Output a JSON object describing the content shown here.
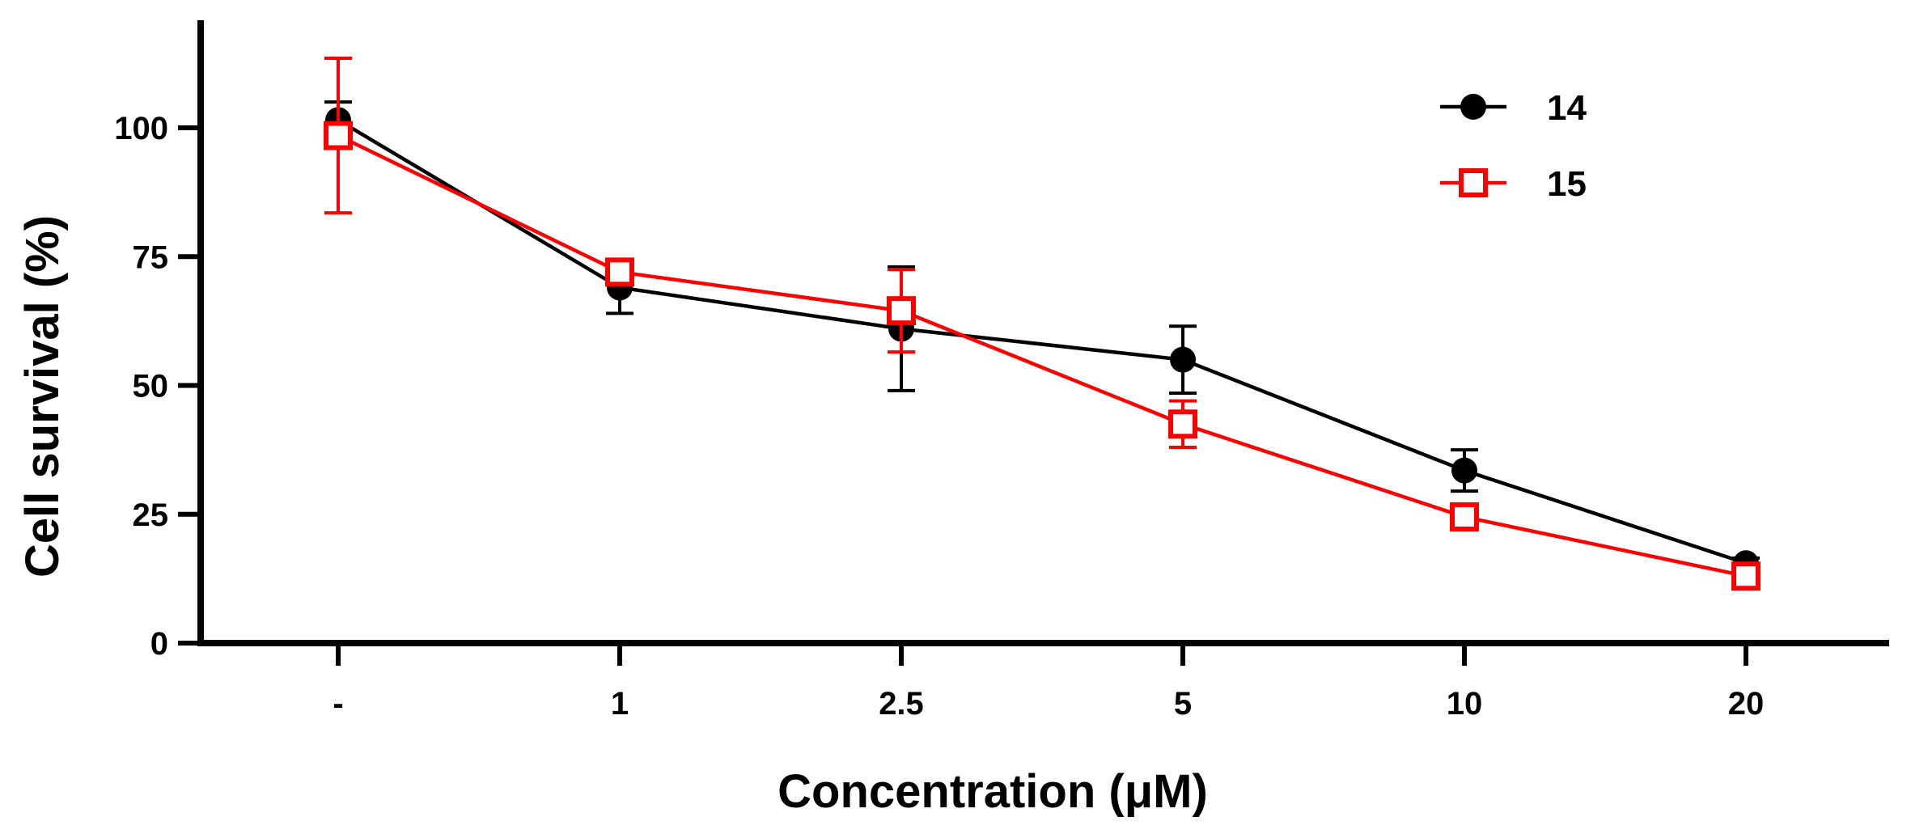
{
  "chart_data": {
    "type": "line",
    "title": "",
    "xlabel": "Concentration (μM)",
    "ylabel": "Cell survival (%)",
    "categories": [
      "-",
      "1",
      "2.5",
      "5",
      "10",
      "20"
    ],
    "ylim": [
      0,
      120
    ],
    "yticks": [
      0,
      25,
      50,
      75,
      100
    ],
    "ytick_labels": [
      "0",
      "25",
      "50",
      "75",
      "100"
    ],
    "grid": false,
    "legend_position": "top-right",
    "series": [
      {
        "name": "14",
        "color": "#000000",
        "marker": "filled-circle",
        "values": [
          101.5,
          69,
          61,
          55,
          33.5,
          15.5
        ],
        "errors": [
          3.5,
          5,
          12,
          6.5,
          4,
          1
        ]
      },
      {
        "name": "15",
        "color": "#ff0000",
        "marker": "open-square",
        "values": [
          98.5,
          72,
          64.5,
          42.5,
          24.5,
          13
        ],
        "errors": [
          15,
          2,
          8,
          4.5,
          1.5,
          1
        ]
      }
    ]
  }
}
